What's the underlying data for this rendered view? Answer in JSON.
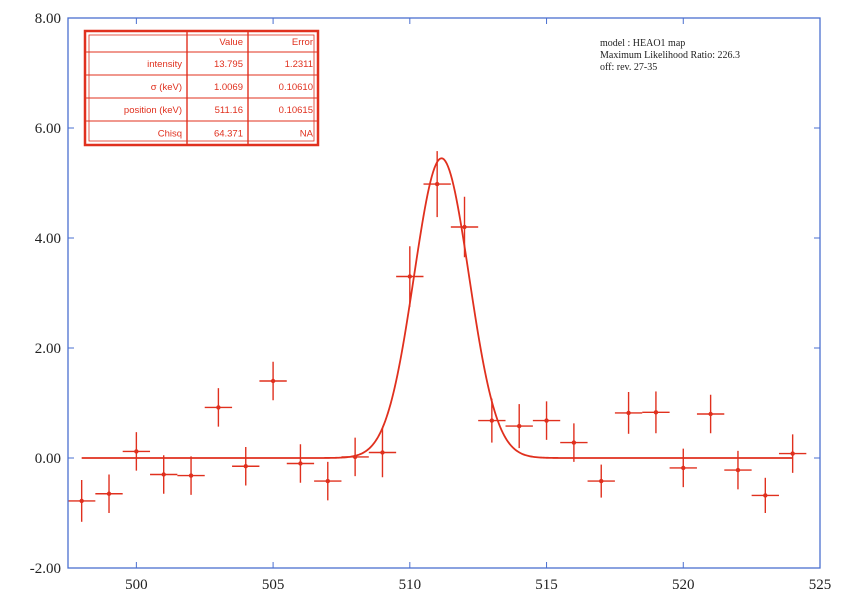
{
  "chart_data": {
    "type": "scatter",
    "title": "",
    "xlabel": "",
    "ylabel": "",
    "xlim": [
      497.5,
      525
    ],
    "ylim": [
      -2,
      8
    ],
    "x_ticks": [
      500,
      505,
      510,
      515,
      520,
      525
    ],
    "y_ticks": [
      -2,
      0,
      2,
      4,
      6,
      8
    ],
    "x_tick_labels": [
      "500",
      "505",
      "510",
      "515",
      "520",
      "525"
    ],
    "y_tick_labels": [
      "-2.00",
      "0.00",
      "2.00",
      "4.00",
      "6.00",
      "8.00"
    ],
    "grid": false,
    "series": [
      {
        "style": "points-with-errorbars",
        "x_halfwidth": 0.5,
        "points": [
          {
            "x": 498,
            "y": -0.78,
            "yerr": 0.38
          },
          {
            "x": 499,
            "y": -0.65,
            "yerr": 0.35
          },
          {
            "x": 500,
            "y": 0.12,
            "yerr": 0.35
          },
          {
            "x": 501,
            "y": -0.3,
            "yerr": 0.35
          },
          {
            "x": 502,
            "y": -0.32,
            "yerr": 0.35
          },
          {
            "x": 503,
            "y": 0.92,
            "yerr": 0.35
          },
          {
            "x": 504,
            "y": -0.15,
            "yerr": 0.35
          },
          {
            "x": 505,
            "y": 1.4,
            "yerr": 0.35
          },
          {
            "x": 506,
            "y": -0.1,
            "yerr": 0.35
          },
          {
            "x": 507,
            "y": -0.42,
            "yerr": 0.35
          },
          {
            "x": 508,
            "y": 0.02,
            "yerr": 0.35
          },
          {
            "x": 509,
            "y": 0.1,
            "yerr": 0.45
          },
          {
            "x": 510,
            "y": 3.3,
            "yerr": 0.55
          },
          {
            "x": 511,
            "y": 4.98,
            "yerr": 0.6
          },
          {
            "x": 512,
            "y": 4.2,
            "yerr": 0.55
          },
          {
            "x": 513,
            "y": 0.68,
            "yerr": 0.4
          },
          {
            "x": 514,
            "y": 0.58,
            "yerr": 0.4
          },
          {
            "x": 515,
            "y": 0.68,
            "yerr": 0.35
          },
          {
            "x": 516,
            "y": 0.28,
            "yerr": 0.35
          },
          {
            "x": 517,
            "y": -0.42,
            "yerr": 0.3
          },
          {
            "x": 518,
            "y": 0.82,
            "yerr": 0.38
          },
          {
            "x": 519,
            "y": 0.83,
            "yerr": 0.38
          },
          {
            "x": 520,
            "y": -0.18,
            "yerr": 0.35
          },
          {
            "x": 521,
            "y": 0.8,
            "yerr": 0.35
          },
          {
            "x": 522,
            "y": -0.22,
            "yerr": 0.35
          },
          {
            "x": 523,
            "y": -0.68,
            "yerr": 0.32
          },
          {
            "x": 524,
            "y": 0.08,
            "yerr": 0.35
          }
        ]
      },
      {
        "style": "fit-curve",
        "model": "gaussian",
        "x_range": [
          498,
          524
        ],
        "amplitude": 5.45,
        "center": 511.16,
        "sigma": 1.0069,
        "baseline": 0
      }
    ],
    "stats_table": {
      "headers": [
        "",
        "Value",
        "Error"
      ],
      "rows": [
        [
          "intensity",
          "13.795",
          "1.2311"
        ],
        [
          "σ (keV)",
          "1.0069",
          "0.10610"
        ],
        [
          "position (keV)",
          "511.16",
          "0.10615"
        ],
        [
          "Chisq",
          "64.371",
          "NA"
        ]
      ]
    },
    "notes": [
      "model : HEAO1 map",
      "Maximum Likelihood Ratio: 226.3",
      "off: rev. 27-35"
    ],
    "colors": {
      "data": "#e0301e",
      "axes": "#4a6fd0",
      "text": "#222222"
    }
  }
}
